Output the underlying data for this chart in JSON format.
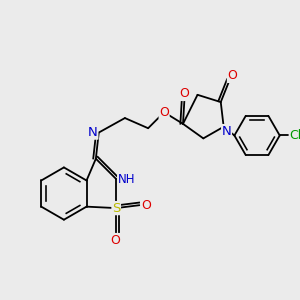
{
  "bg_color": "#ebebeb",
  "bond_color": "#000000",
  "atom_colors": {
    "O": "#dd0000",
    "N": "#0000cc",
    "S": "#bbbb00",
    "Cl": "#009900",
    "H": "#888888",
    "C": "#000000"
  },
  "figsize": [
    3.0,
    3.0
  ],
  "dpi": 100,
  "lw": 1.3,
  "fs": 8.5
}
